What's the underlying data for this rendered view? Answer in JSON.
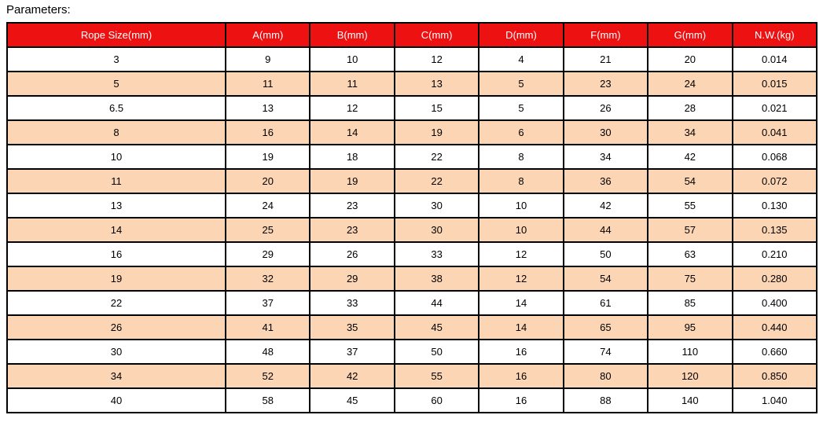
{
  "page": {
    "title": "Parameters:"
  },
  "colors": {
    "header_bg": "#EE1111",
    "header_text": "#FFFFFF",
    "row_bg": "#FFFFFF",
    "row_alt_bg": "#FBD5B4",
    "border": "#000000",
    "text": "#000000"
  },
  "table": {
    "columns": [
      "Rope Size(mm)",
      "A(mm)",
      "B(mm)",
      "C(mm)",
      "D(mm)",
      "F(mm)",
      "G(mm)",
      "N.W.(kg)"
    ],
    "rows": [
      [
        "3",
        "9",
        "10",
        "12",
        "4",
        "21",
        "20",
        "0.014"
      ],
      [
        "5",
        "11",
        "11",
        "13",
        "5",
        "23",
        "24",
        "0.015"
      ],
      [
        "6.5",
        "13",
        "12",
        "15",
        "5",
        "26",
        "28",
        "0.021"
      ],
      [
        "8",
        "16",
        "14",
        "19",
        "6",
        "30",
        "34",
        "0.041"
      ],
      [
        "10",
        "19",
        "18",
        "22",
        "8",
        "34",
        "42",
        "0.068"
      ],
      [
        "11",
        "20",
        "19",
        "22",
        "8",
        "36",
        "54",
        "0.072"
      ],
      [
        "13",
        "24",
        "23",
        "30",
        "10",
        "42",
        "55",
        "0.130"
      ],
      [
        "14",
        "25",
        "23",
        "30",
        "10",
        "44",
        "57",
        "0.135"
      ],
      [
        "16",
        "29",
        "26",
        "33",
        "12",
        "50",
        "63",
        "0.210"
      ],
      [
        "19",
        "32",
        "29",
        "38",
        "12",
        "54",
        "75",
        "0.280"
      ],
      [
        "22",
        "37",
        "33",
        "44",
        "14",
        "61",
        "85",
        "0.400"
      ],
      [
        "26",
        "41",
        "35",
        "45",
        "14",
        "65",
        "95",
        "0.440"
      ],
      [
        "30",
        "48",
        "37",
        "50",
        "16",
        "74",
        "110",
        "0.660"
      ],
      [
        "34",
        "52",
        "42",
        "55",
        "16",
        "80",
        "120",
        "0.850"
      ],
      [
        "40",
        "58",
        "45",
        "60",
        "16",
        "88",
        "140",
        "1.040"
      ]
    ]
  }
}
